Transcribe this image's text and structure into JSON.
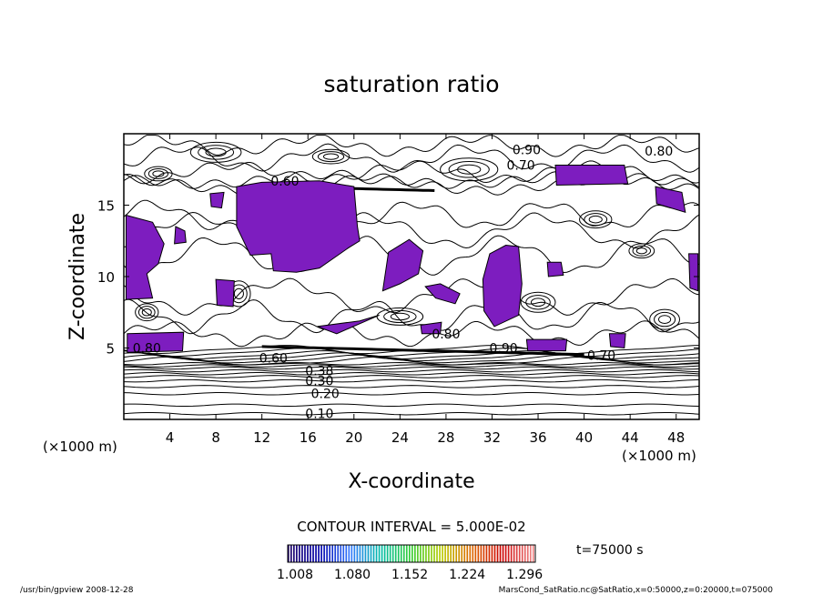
{
  "chart_data": {
    "type": "contour",
    "title": "saturation ratio",
    "xlabel": "X-coordinate",
    "ylabel": "Z-coordinate",
    "x_unit": "(×1000 m)",
    "z_unit": "(×1000 m)",
    "xlim": [
      0,
      50
    ],
    "ylim": [
      0,
      20
    ],
    "x_ticks": [
      4,
      8,
      12,
      16,
      20,
      24,
      28,
      32,
      36,
      40,
      44,
      48
    ],
    "y_ticks": [
      5,
      10,
      15
    ],
    "contour_interval_text": "CONTOUR INTERVAL = 5.000E-02",
    "contour_labels": [
      {
        "text": "0.10",
        "x": 17.0,
        "z": 0.4
      },
      {
        "text": "0.20",
        "x": 17.5,
        "z": 1.8
      },
      {
        "text": "0.30",
        "x": 17.0,
        "z": 2.7
      },
      {
        "text": "0.38",
        "x": 17.0,
        "z": 3.4
      },
      {
        "text": "0.60",
        "x": 13.0,
        "z": 4.3
      },
      {
        "text": "0.80",
        "x": 2.0,
        "z": 5.0
      },
      {
        "text": "0.80",
        "x": 28.0,
        "z": 6.0
      },
      {
        "text": "0.60",
        "x": 14.0,
        "z": 16.7
      },
      {
        "text": "0.70",
        "x": 34.5,
        "z": 17.8
      },
      {
        "text": "0.80",
        "x": 46.5,
        "z": 18.8
      },
      {
        "text": "0.90",
        "x": 35.0,
        "z": 18.9
      },
      {
        "text": "0.90",
        "x": 33.0,
        "z": 5.0
      },
      {
        "text": "0.70",
        "x": 41.5,
        "z": 4.5
      }
    ],
    "supersaturated_threshold": 1.0,
    "colorbar": {
      "ticks": [
        "1.008",
        "1.080",
        "1.152",
        "1.224",
        "1.296"
      ],
      "colors": [
        "#1a0066",
        "#0000aa",
        "#3377ff",
        "#00bbaa",
        "#33cc33",
        "#bbcc00",
        "#dd6600",
        "#cc0000",
        "#ee8888"
      ]
    },
    "shade_color": "#7d1dbf",
    "time_label": "t=75000 s"
  },
  "footer": {
    "left": "/usr/bin/gpview   2008-12-28",
    "right": "MarsCond_SatRatio.nc@SatRatio,x=0:50000,z=0:20000,t=075000"
  }
}
